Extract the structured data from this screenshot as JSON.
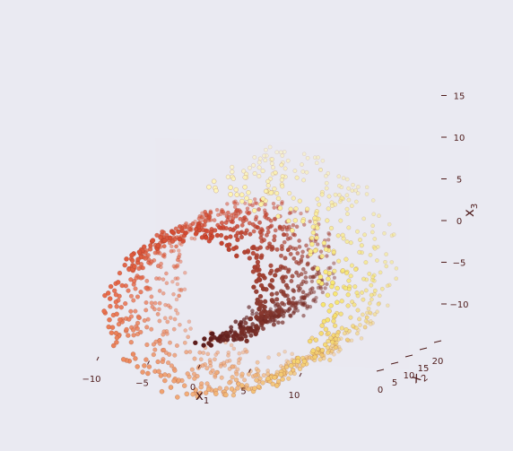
{
  "chart_data": {
    "type": "scatter",
    "projection": "3d",
    "title": "",
    "colormap": "YlOrRd",
    "colormap_stops": [
      "#fff7c0",
      "#f7e76a",
      "#f2b07a",
      "#e86a48",
      "#d0442d",
      "#8a3a30",
      "#5a1a1a"
    ],
    "background_color": "#eaeaf2",
    "grid": true,
    "axes": {
      "x1": {
        "label": "x",
        "subscript": "1",
        "ticks": [
          "−10",
          "−5",
          "0",
          "5",
          "10"
        ],
        "range": [
          -12,
          14
        ]
      },
      "x2": {
        "label": "x",
        "subscript": "2",
        "ticks": [
          "0",
          "5",
          "10",
          "15",
          "20"
        ],
        "range": [
          0,
          21
        ]
      },
      "x3": {
        "label": "x",
        "subscript": "3",
        "ticks": [
          "−10",
          "−5",
          "0",
          "5",
          "10",
          "15"
        ],
        "range": [
          -12,
          15
        ]
      }
    },
    "series": [
      {
        "shape": "swiss-roll",
        "points_count": 1500,
        "color_variable": "t",
        "t_range": [
          4.71,
          14.14
        ],
        "x2_range": [
          0,
          21
        ]
      }
    ]
  }
}
